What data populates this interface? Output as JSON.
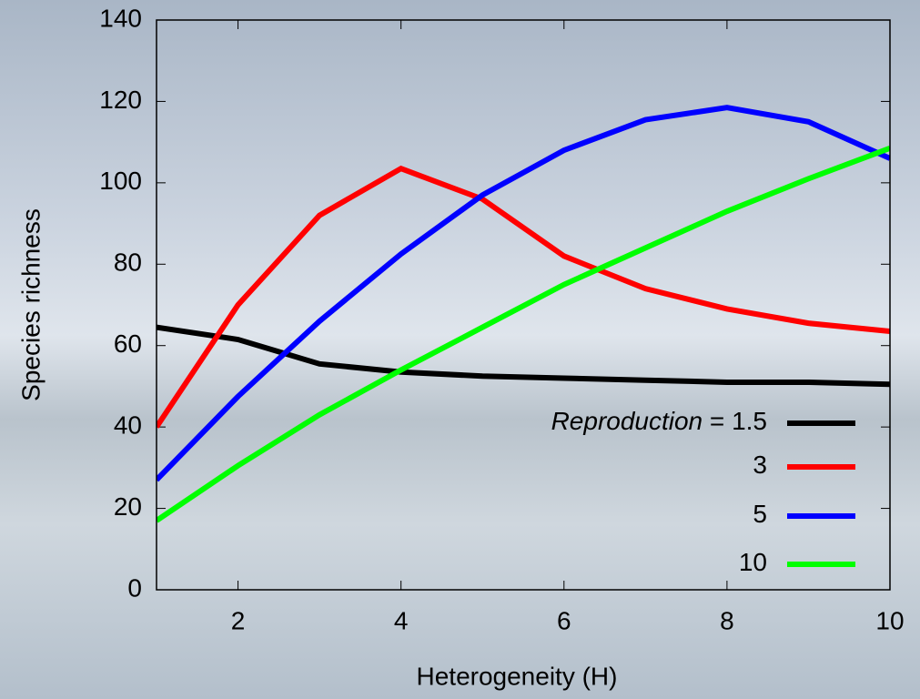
{
  "chart_data": {
    "type": "line",
    "xlabel": "Heterogeneity (H)",
    "ylabel": "Species richness",
    "legend_title": "Reproduction =",
    "x": [
      1,
      2,
      3,
      4,
      5,
      6,
      7,
      8,
      9,
      10
    ],
    "series": [
      {
        "name": "1.5",
        "color": "#000000",
        "values": [
          64.5,
          61.5,
          55.5,
          53.5,
          52.5,
          52,
          51.5,
          51,
          51,
          50.5
        ]
      },
      {
        "name": "3",
        "color": "#ff0000",
        "values": [
          40,
          70,
          92,
          103.5,
          96,
          82,
          74,
          69,
          65.5,
          63.5
        ]
      },
      {
        "name": "5",
        "color": "#0000ff",
        "values": [
          27,
          47.5,
          66,
          82.5,
          97,
          108,
          115.5,
          118.5,
          115,
          106
        ]
      },
      {
        "name": "10",
        "color": "#00ff00",
        "values": [
          17,
          30.5,
          43,
          54,
          64.5,
          75,
          84,
          93,
          101,
          108.5
        ]
      }
    ],
    "xlim": [
      1,
      10
    ],
    "xticks": [
      2,
      4,
      6,
      8,
      10
    ],
    "ylim": [
      0,
      140
    ],
    "yticks": [
      0,
      20,
      40,
      60,
      80,
      100,
      120,
      140
    ],
    "grid": false,
    "legend_position": "lower right"
  }
}
